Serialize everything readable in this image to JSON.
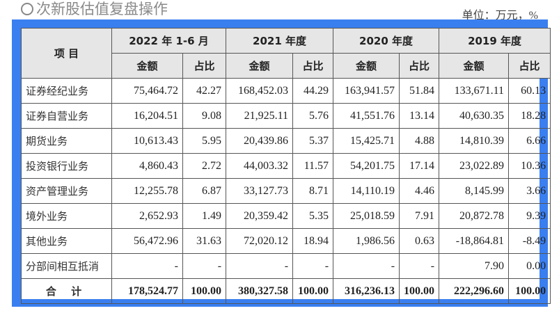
{
  "unit": "单位：万元，%",
  "header": {
    "item": "项 目",
    "periods": [
      "2022 年 1-6 月",
      "2021 年度",
      "2020 年度",
      "2019 年度"
    ],
    "amount": "金额",
    "ratio": "占比"
  },
  "rows": [
    {
      "label": "证券经纪业务",
      "values": [
        "75,464.72",
        "42.27",
        "168,452.03",
        "44.29",
        "163,941.57",
        "51.84",
        "133,671.11",
        "60.13"
      ]
    },
    {
      "label": "证券自营业务",
      "values": [
        "16,204.51",
        "9.08",
        "21,925.11",
        "5.76",
        "41,551.76",
        "13.14",
        "40,630.35",
        "18.28"
      ]
    },
    {
      "label": "期货业务",
      "values": [
        "10,613.43",
        "5.95",
        "20,439.86",
        "5.37",
        "15,425.71",
        "4.88",
        "14,810.39",
        "6.66"
      ]
    },
    {
      "label": "投资银行业务",
      "values": [
        "4,860.43",
        "2.72",
        "44,003.32",
        "11.57",
        "54,201.75",
        "17.14",
        "23,022.89",
        "10.36"
      ]
    },
    {
      "label": "资产管理业务",
      "values": [
        "12,255.78",
        "6.87",
        "33,127.73",
        "8.71",
        "14,110.19",
        "4.46",
        "8,145.99",
        "3.66"
      ]
    },
    {
      "label": "境外业务",
      "values": [
        "2,652.93",
        "1.49",
        "20,359.42",
        "5.35",
        "25,018.59",
        "7.91",
        "20,872.78",
        "9.39"
      ]
    },
    {
      "label": "其他业务",
      "values": [
        "56,472.96",
        "31.63",
        "72,020.12",
        "18.94",
        "1,986.56",
        "0.63",
        "-18,864.81",
        "-8.49"
      ]
    },
    {
      "label": "分部间相互抵消",
      "values": [
        "-",
        "-",
        "-",
        "-",
        "-",
        "-",
        "7.90",
        "0.00"
      ]
    }
  ],
  "total": {
    "label": "合 计",
    "values": [
      "178,524.77",
      "100.00",
      "380,327.58",
      "100.00",
      "316,236.13",
      "100.00",
      "222,296.60",
      "100.00"
    ]
  },
  "watermark": "次新股估值复盘操作",
  "colors": {
    "frame": "#3a7ff0",
    "header_bg": "#e6e6e6"
  }
}
